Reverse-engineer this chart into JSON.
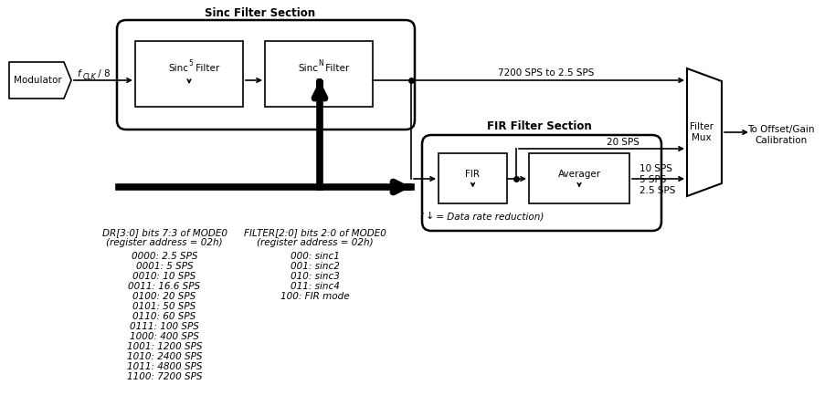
{
  "title": "Sinc Filter Section",
  "fir_section_title": "FIR Filter Section",
  "filter_mux_label": "Filter\nMux",
  "to_label": "To Offset/Gain\nCalibration",
  "modulator_label": "Modulator",
  "sinc5_text": "Sinc",
  "sinc5_sup": "5",
  "sinc5_filter": " Filter",
  "sincN_text": "Sinc",
  "sincN_sup": "N",
  "sincN_filter": " Filter",
  "fir_label": "FIR",
  "averager_label": "Averager",
  "sps_top": "7200 SPS to 2.5 SPS",
  "sps_20": "20 SPS",
  "sps_10": "10 SPS",
  "sps_5": "5 SPS",
  "sps_25": "2.5 SPS",
  "dr_header1": "DR[3:0] bits 7:3 of MODE0",
  "dr_header2": "(register address = 02h)",
  "dr_values": [
    "0000: 2.5 SPS",
    "0001: 5 SPS",
    "0010: 10 SPS",
    "0011: 16.6 SPS",
    "0100: 20 SPS",
    "0101: 50 SPS",
    "0110: 60 SPS",
    "0111: 100 SPS",
    "1000: 400 SPS",
    "1001: 1200 SPS",
    "1010: 2400 SPS",
    "1011: 4800 SPS",
    "1100: 7200 SPS"
  ],
  "filter_header1": "FILTER[2:0] bits 2:0 of MODE0",
  "filter_header2": "(register address = 02h)",
  "filter_values": [
    "000: sinc1",
    "001: sinc2",
    "010: sinc3",
    "011: sinc4",
    "100: FIR mode"
  ],
  "data_rate_note1": "( ",
  "data_rate_note2": " = Data rate reduction)",
  "bg_color": "#ffffff"
}
